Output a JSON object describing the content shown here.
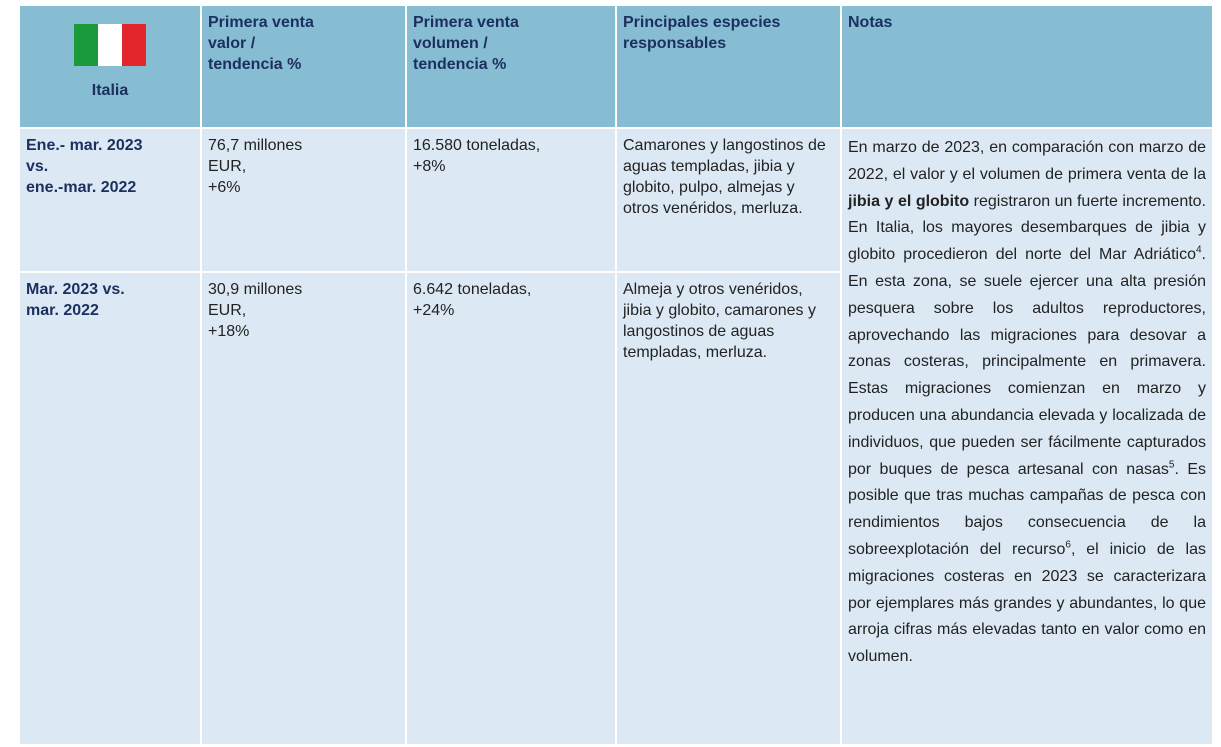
{
  "header": {
    "country": "Italia",
    "columns": [
      [
        "Primera venta",
        "valor /",
        "tendencia %"
      ],
      [
        "Primera venta",
        "volumen /",
        "tendencia %"
      ],
      [
        "Principales especies",
        "responsables"
      ],
      [
        "Notas"
      ]
    ]
  },
  "rows": [
    {
      "period": [
        "Ene.- mar. 2023",
        "vs.",
        "ene.-mar. 2022"
      ],
      "value": [
        "76,7 millones",
        "EUR,",
        "+6%"
      ],
      "volume": [
        "16.580 toneladas,",
        "+8%"
      ],
      "species": "Camarones y langostinos de aguas templadas, jibia y globito, pulpo, almejas y otros venéridos, merluza."
    },
    {
      "period": [
        "Mar. 2023 vs.",
        "mar. 2022"
      ],
      "value": [
        "30,9 millones",
        "EUR,",
        "+18%"
      ],
      "volume": [
        "6.642 toneladas,",
        "+24%"
      ],
      "species": "Almeja y otros venéridos, jibia y globito, camarones y langostinos de aguas templadas, merluza."
    }
  ],
  "notes": [
    {
      "text": "En marzo de 2023, en comparación con marzo de 2022, el valor y el volumen de primera venta de la "
    },
    {
      "text": "jibia y el globito",
      "style": "bold"
    },
    {
      "text": " registraron un fuerte incremento. En Italia, los mayores desembarques de jibia y globito procedieron del norte del Mar Adriático"
    },
    {
      "text": "4",
      "style": "sup"
    },
    {
      "text": ". En esta zona, se suele ejercer una alta presión pesquera sobre los adultos reproductores, aprovechando las migraciones para desovar a zonas costeras, principalmente en primavera. Estas migraciones comienzan en marzo y producen una abundancia elevada y localizada de individuos, que pueden ser fácilmente capturados por buques de pesca artesanal con nasas"
    },
    {
      "text": "5",
      "style": "sup"
    },
    {
      "text": ". Es posible que tras muchas campañas de pesca con rendimientos bajos consecuencia de la sobreexplotación del recurso"
    },
    {
      "text": "6",
      "style": "sup"
    },
    {
      "text": ", el inicio de las migraciones costeras en 2023 se caracterizara por ejemplares más grandes y abundantes, lo que arroja cifras más elevadas tanto en valor como en volumen."
    }
  ]
}
